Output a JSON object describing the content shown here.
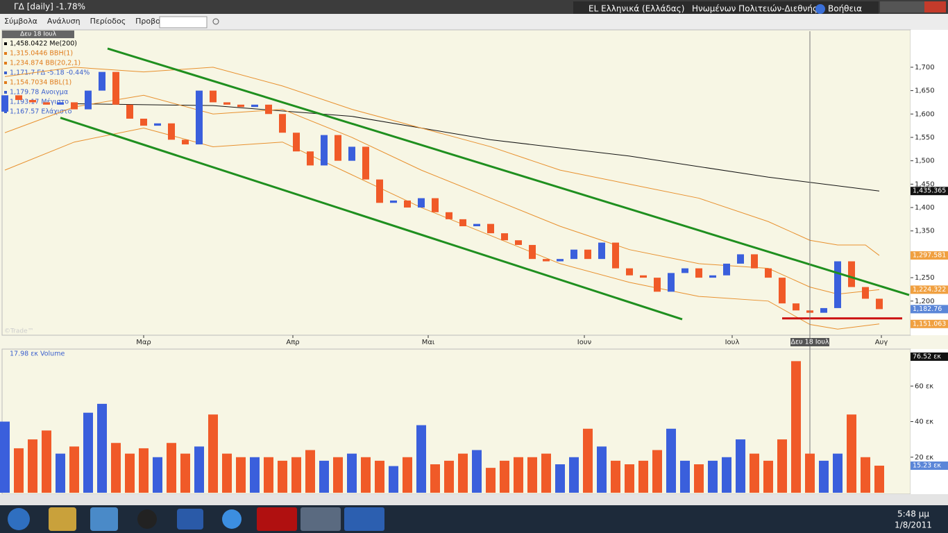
{
  "window": {
    "title": "ΓΔ [daily] -1.78%",
    "language": "EL Ελληνικά (Ελλάδας)",
    "keyboard": "Ηνωμένων Πολιτειών-Διεθνής",
    "help": "Βοήθεια"
  },
  "menu": [
    "Σύμβολα",
    "Ανάλυση",
    "Περίοδος",
    "Προβολή"
  ],
  "legend_date": "Δευ 18 Ιουλ",
  "legend": [
    {
      "text": "1,458.0422 Me(200)",
      "color": "#000000"
    },
    {
      "text": "1,315.0446 BBH(1)",
      "color": "#e07b1a"
    },
    {
      "text": "1,234.874 BB(20,2,1)",
      "color": "#e07b1a"
    },
    {
      "text": "1,171.7 ΓΔ -5.18 -0.44%",
      "color": "#3a5fcd"
    },
    {
      "text": "1,154.7034 BBL(1)",
      "color": "#e07b1a"
    },
    {
      "text": "1,179.78 Ανοιγμα",
      "color": "#3a5fcd"
    },
    {
      "text": "1,193.17 Μέγιστο",
      "color": "#3a5fcd"
    },
    {
      "text": "1,167.57 Ελάχιστο",
      "color": "#3a5fcd"
    }
  ],
  "watermark": "©Trade™",
  "chart_data": [
    {
      "type": "candlestick",
      "up_color": "#3a5fdc",
      "down_color": "#f05a28",
      "xlim": [
        -0.2,
        65.25
      ],
      "ylim": [
        1127,
        1777
      ],
      "xticks": [
        {
          "value": 10,
          "label": "Μαρ"
        },
        {
          "value": 20.75,
          "label": "Απρ"
        },
        {
          "value": 30.5,
          "label": "Μαι"
        },
        {
          "value": 41.75,
          "label": "Ιουν"
        },
        {
          "value": 52.4,
          "label": "Ιουλ"
        },
        {
          "value": 63.15,
          "label": "Αυγ"
        }
      ],
      "yticks": [
        {
          "value": 1200,
          "label": "1,200"
        },
        {
          "value": 1250,
          "label": "1,250"
        },
        {
          "value": 1300,
          "label": "1,300"
        },
        {
          "value": 1350,
          "label": "1,350"
        },
        {
          "value": 1400,
          "label": "1,400"
        },
        {
          "value": 1450,
          "label": "1,450"
        },
        {
          "value": 1500,
          "label": "1,500"
        },
        {
          "value": 1550,
          "label": "1,550"
        },
        {
          "value": 1600,
          "label": "1,600"
        },
        {
          "value": 1650,
          "label": "1,650"
        },
        {
          "value": 1700,
          "label": "1,700"
        }
      ],
      "open": [
        1605,
        1640,
        1630,
        1625,
        1620,
        1625,
        1610,
        1650,
        1690,
        1620,
        1590,
        1575,
        1580,
        1545,
        1535,
        1650,
        1625,
        1620,
        1615,
        1620,
        1600,
        1560,
        1520,
        1490,
        1555,
        1500,
        1530,
        1460,
        1410,
        1415,
        1400,
        1420,
        1390,
        1375,
        1360,
        1365,
        1345,
        1330,
        1320,
        1290,
        1285,
        1290,
        1310,
        1290,
        1325,
        1270,
        1255,
        1250,
        1220,
        1260,
        1270,
        1250,
        1255,
        1280,
        1300,
        1270,
        1250,
        1195,
        1180,
        1175,
        1185,
        1285,
        1230,
        1205
      ],
      "close": [
        1640,
        1630,
        1625,
        1620,
        1625,
        1610,
        1650,
        1690,
        1620,
        1590,
        1575,
        1580,
        1545,
        1535,
        1650,
        1625,
        1620,
        1615,
        1620,
        1600,
        1560,
        1520,
        1490,
        1555,
        1500,
        1530,
        1460,
        1410,
        1415,
        1400,
        1420,
        1390,
        1375,
        1360,
        1365,
        1345,
        1330,
        1320,
        1290,
        1285,
        1290,
        1310,
        1290,
        1325,
        1270,
        1255,
        1250,
        1220,
        1260,
        1270,
        1250,
        1255,
        1280,
        1300,
        1270,
        1250,
        1195,
        1180,
        1175,
        1185,
        1285,
        1230,
        1205,
        1182.76
      ],
      "overlays": [
        {
          "name": "Me(200)",
          "color": "#111111",
          "x": [
            5,
            15,
            25,
            35,
            45,
            55,
            63
          ],
          "values": [
            1622,
            1618,
            1595,
            1545,
            1510,
            1465,
            1435.365
          ]
        },
        {
          "name": "BBH(1)",
          "color": "#e8902e",
          "x": [
            0,
            5,
            10,
            15,
            20,
            25,
            30,
            35,
            40,
            45,
            50,
            55,
            58,
            60,
            62,
            63
          ],
          "values": [
            1680,
            1700,
            1690,
            1700,
            1660,
            1610,
            1570,
            1530,
            1480,
            1450,
            1420,
            1370,
            1330,
            1320,
            1320,
            1297.581
          ]
        },
        {
          "name": "BB(20,2,1)",
          "color": "#e8902e",
          "x": [
            0,
            5,
            10,
            15,
            20,
            25,
            30,
            35,
            40,
            45,
            50,
            55,
            58,
            60,
            63
          ],
          "values": [
            1560,
            1615,
            1640,
            1600,
            1610,
            1550,
            1480,
            1420,
            1360,
            1310,
            1280,
            1270,
            1230,
            1215,
            1224.322
          ]
        },
        {
          "name": "BBL(1)",
          "color": "#e8902e",
          "x": [
            0,
            5,
            10,
            15,
            20,
            25,
            30,
            35,
            40,
            45,
            50,
            55,
            58,
            60,
            63
          ],
          "values": [
            1480,
            1540,
            1570,
            1530,
            1540,
            1470,
            1400,
            1340,
            1280,
            1240,
            1210,
            1200,
            1150,
            1140,
            1151.063
          ]
        }
      ],
      "trendlines": [
        {
          "color": "#1f8f1f",
          "x": [
            7.4,
            65.15
          ],
          "values": [
            1740,
            1213
          ]
        },
        {
          "color": "#1f8f1f",
          "x": [
            4,
            48.8
          ],
          "values": [
            1592,
            1161
          ]
        },
        {
          "color": "#cc1111",
          "x": [
            56,
            64.65
          ],
          "values": [
            1163,
            1163
          ]
        }
      ],
      "price_markers": [
        {
          "value": 1435.365,
          "label": "1,435.365",
          "color": "#111111"
        },
        {
          "value": 1297.581,
          "label": "1,297.581",
          "color": "#f0a040"
        },
        {
          "value": 1224.322,
          "label": "1,224.322",
          "color": "#f0a040"
        },
        {
          "value": 1182.76,
          "label": "1,182.76",
          "color": "#5b86d8"
        },
        {
          "value": 1151.063,
          "label": "1,151.063",
          "color": "#f0a040"
        }
      ],
      "crosshair": {
        "value": 58,
        "label": "Δευ 18 Ιουλ"
      }
    },
    {
      "type": "volume",
      "title": "17.98 εκ Volume",
      "xlim": [
        -0.2,
        65.25
      ],
      "ylim": [
        0,
        80
      ],
      "values": [
        40,
        25,
        30,
        35,
        22,
        26,
        45,
        50,
        28,
        22,
        25,
        20,
        28,
        22,
        26,
        44,
        22,
        20,
        20,
        20,
        18,
        20,
        24,
        18,
        20,
        22,
        20,
        18,
        15,
        20,
        38,
        16,
        18,
        22,
        24,
        14,
        18,
        20,
        20,
        22,
        16,
        20,
        36,
        26,
        18,
        16,
        18,
        24,
        36,
        18,
        16,
        18,
        20,
        30,
        22,
        18,
        30,
        74,
        22,
        18,
        22,
        44,
        20,
        15.23
      ],
      "yticks": [
        {
          "value": 20,
          "label": "20 εκ"
        },
        {
          "value": 40,
          "label": "40 εκ"
        },
        {
          "value": 60,
          "label": "60 εκ"
        }
      ],
      "price_markers": [
        {
          "value": 76.52,
          "label": "76.52 εκ",
          "color": "#111111"
        },
        {
          "value": 15.23,
          "label": "15.23 εκ",
          "color": "#5b86d8"
        }
      ]
    }
  ],
  "taskbar": {
    "time": "5:48 μμ",
    "date": "1/8/2011"
  }
}
